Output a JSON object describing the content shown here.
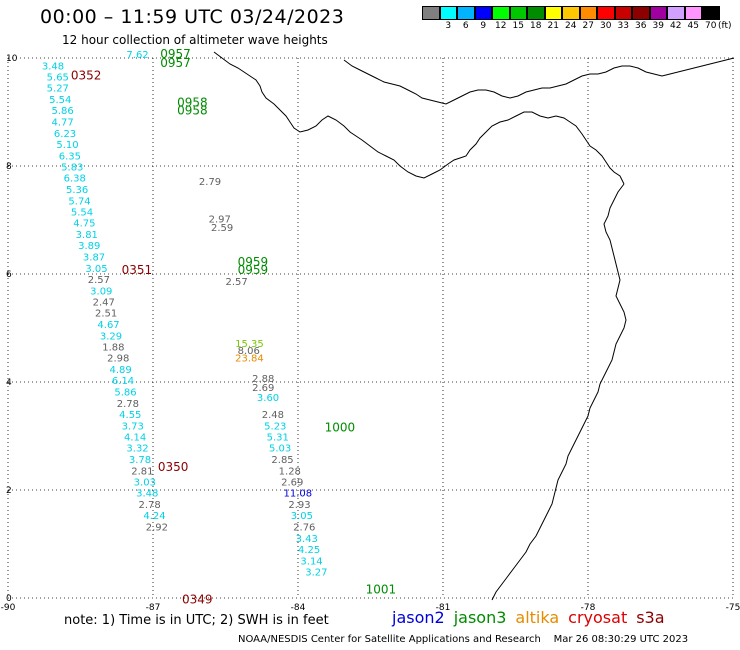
{
  "header": {
    "title": "00:00 – 11:59 UTC 03/24/2023",
    "subtitle": "12 hour collection of altimeter wave heights"
  },
  "colorbar": {
    "swatches": [
      "#808080",
      "#00ffff",
      "#00b4ff",
      "#0000ff",
      "#00ff00",
      "#00c800",
      "#008c00",
      "#ffff00",
      "#ffc800",
      "#ff8c00",
      "#ff0000",
      "#c80000",
      "#8c0000",
      "#a000a0",
      "#d2a0ff",
      "#ff96ff",
      "#000000"
    ],
    "labels": [
      "",
      "3",
      "6",
      "9",
      "12",
      "15",
      "18",
      "21",
      "24",
      "27",
      "30",
      "33",
      "36",
      "39",
      "42",
      "45",
      "70"
    ],
    "unit": "(ft)"
  },
  "map": {
    "lon_min": -90,
    "lon_max": -75,
    "lat_min": 0,
    "lat_max": 10,
    "x_ticks": [
      {
        "v": -90,
        "t": "-90"
      },
      {
        "v": -87,
        "t": "-87"
      },
      {
        "v": -84,
        "t": "-84"
      },
      {
        "v": -81,
        "t": "-81"
      },
      {
        "v": -78,
        "t": "-78"
      },
      {
        "v": -75,
        "t": "-75"
      }
    ],
    "y_ticks": [
      {
        "v": 0,
        "t": "0"
      },
      {
        "v": 2,
        "t": "2"
      },
      {
        "v": 4,
        "t": "4"
      },
      {
        "v": 6,
        "t": "6"
      },
      {
        "v": 8,
        "t": "8"
      },
      {
        "v": 10,
        "t": "10"
      }
    ],
    "colors": {
      "gray": "#606060",
      "cyan": "#00d2e6",
      "blue": "#0000dc",
      "green": "#008c00",
      "orange": "#e68c00",
      "darkred": "#8c0000",
      "yellowgreen": "#78c800"
    },
    "time_labels": [
      {
        "text": "0352",
        "lon": -88.7,
        "lat": 9.6,
        "color": "darkred"
      },
      {
        "text": "0351",
        "lon": -87.65,
        "lat": 6.0,
        "color": "darkred"
      },
      {
        "text": "0350",
        "lon": -86.9,
        "lat": 2.35,
        "color": "darkred"
      },
      {
        "text": "0349",
        "lon": -86.4,
        "lat": -0.1,
        "color": "darkred"
      },
      {
        "text": "0957",
        "lon": -86.85,
        "lat": 10.0,
        "color": "green"
      },
      {
        "text": "0957",
        "lon": -86.85,
        "lat": 9.83,
        "color": "green"
      },
      {
        "text": "0958",
        "lon": -86.5,
        "lat": 9.1,
        "color": "green"
      },
      {
        "text": "0958",
        "lon": -86.5,
        "lat": 8.95,
        "color": "green"
      },
      {
        "text": "0959",
        "lon": -85.25,
        "lat": 6.15,
        "color": "green"
      },
      {
        "text": "0959",
        "lon": -85.25,
        "lat": 6.0,
        "color": "green"
      },
      {
        "text": "1000",
        "lon": -83.45,
        "lat": 3.08,
        "color": "green"
      },
      {
        "text": "1001",
        "lon": -82.6,
        "lat": 0.08,
        "color": "green"
      }
    ],
    "left_track": [
      {
        "v": "3.48",
        "lon": -89.3,
        "lat": 9.79,
        "c": "cyan"
      },
      {
        "v": "5.65",
        "lon": -89.2,
        "lat": 9.58,
        "c": "cyan"
      },
      {
        "v": "5.27",
        "lon": -89.2,
        "lat": 9.38,
        "c": "cyan"
      },
      {
        "v": "5.54",
        "lon": -89.15,
        "lat": 9.17,
        "c": "cyan"
      },
      {
        "v": "5.86",
        "lon": -89.1,
        "lat": 8.96,
        "c": "cyan"
      },
      {
        "v": "4.77",
        "lon": -89.1,
        "lat": 8.75,
        "c": "cyan"
      },
      {
        "v": "6.23",
        "lon": -89.05,
        "lat": 8.54,
        "c": "cyan"
      },
      {
        "v": "5.10",
        "lon": -89.0,
        "lat": 8.33,
        "c": "cyan"
      },
      {
        "v": "6.35",
        "lon": -88.95,
        "lat": 8.12,
        "c": "cyan"
      },
      {
        "v": "5.83",
        "lon": -88.9,
        "lat": 7.92,
        "c": "cyan"
      },
      {
        "v": "6.38",
        "lon": -88.85,
        "lat": 7.71,
        "c": "cyan"
      },
      {
        "v": "5.36",
        "lon": -88.8,
        "lat": 7.5,
        "c": "cyan"
      },
      {
        "v": "5.74",
        "lon": -88.75,
        "lat": 7.29,
        "c": "cyan"
      },
      {
        "v": "5.54",
        "lon": -88.7,
        "lat": 7.08,
        "c": "cyan"
      },
      {
        "v": "4.75",
        "lon": -88.65,
        "lat": 6.88,
        "c": "cyan"
      },
      {
        "v": "3.81",
        "lon": -88.6,
        "lat": 6.67,
        "c": "cyan"
      },
      {
        "v": "3.89",
        "lon": -88.55,
        "lat": 6.46,
        "c": "cyan"
      },
      {
        "v": "3.87",
        "lon": -88.45,
        "lat": 6.25,
        "c": "cyan"
      },
      {
        "v": "3.05",
        "lon": -88.4,
        "lat": 6.04,
        "c": "cyan"
      },
      {
        "v": "2.57",
        "lon": -88.35,
        "lat": 5.83,
        "c": "gray"
      },
      {
        "v": "3.09",
        "lon": -88.3,
        "lat": 5.62,
        "c": "cyan"
      },
      {
        "v": "2.47",
        "lon": -88.25,
        "lat": 5.42,
        "c": "gray"
      },
      {
        "v": "2.51",
        "lon": -88.2,
        "lat": 5.21,
        "c": "gray"
      },
      {
        "v": "4.67",
        "lon": -88.15,
        "lat": 5.0,
        "c": "cyan"
      },
      {
        "v": "3.29",
        "lon": -88.1,
        "lat": 4.79,
        "c": "cyan"
      },
      {
        "v": "1.88",
        "lon": -88.05,
        "lat": 4.58,
        "c": "gray"
      },
      {
        "v": "2.98",
        "lon": -87.95,
        "lat": 4.38,
        "c": "gray"
      },
      {
        "v": "4.89",
        "lon": -87.9,
        "lat": 4.17,
        "c": "cyan"
      },
      {
        "v": "6.14",
        "lon": -87.85,
        "lat": 3.96,
        "c": "cyan"
      },
      {
        "v": "5.86",
        "lon": -87.8,
        "lat": 3.75,
        "c": "cyan"
      },
      {
        "v": "2.78",
        "lon": -87.75,
        "lat": 3.54,
        "c": "gray"
      },
      {
        "v": "4.55",
        "lon": -87.7,
        "lat": 3.33,
        "c": "cyan"
      },
      {
        "v": "3.73",
        "lon": -87.65,
        "lat": 3.12,
        "c": "cyan"
      },
      {
        "v": "4.14",
        "lon": -87.6,
        "lat": 2.92,
        "c": "cyan"
      },
      {
        "v": "3.32",
        "lon": -87.55,
        "lat": 2.71,
        "c": "cyan"
      },
      {
        "v": "3.78",
        "lon": -87.5,
        "lat": 2.5,
        "c": "cyan"
      },
      {
        "v": "2.81",
        "lon": -87.45,
        "lat": 2.29,
        "c": "gray"
      },
      {
        "v": "3.03",
        "lon": -87.4,
        "lat": 2.08,
        "c": "cyan"
      },
      {
        "v": "3.48",
        "lon": -87.35,
        "lat": 1.88,
        "c": "cyan"
      },
      {
        "v": "2.78",
        "lon": -87.3,
        "lat": 1.67,
        "c": "gray"
      },
      {
        "v": "4.24",
        "lon": -87.2,
        "lat": 1.46,
        "c": "cyan"
      },
      {
        "v": "2.92",
        "lon": -87.15,
        "lat": 1.25,
        "c": "gray"
      }
    ],
    "right_track": [
      {
        "v": "7.62",
        "lon": -87.55,
        "lat": 10.0,
        "c": "cyan"
      },
      {
        "v": "2.79",
        "lon": -86.05,
        "lat": 7.65,
        "c": "gray"
      },
      {
        "v": "2.97",
        "lon": -85.85,
        "lat": 6.95,
        "c": "gray"
      },
      {
        "v": "2.59",
        "lon": -85.8,
        "lat": 6.8,
        "c": "gray"
      },
      {
        "v": "2.57",
        "lon": -85.5,
        "lat": 5.8,
        "c": "gray"
      },
      {
        "v": "15.35",
        "lon": -85.3,
        "lat": 4.65,
        "c": "yellowgreen"
      },
      {
        "v": "8.06",
        "lon": -85.25,
        "lat": 4.52,
        "c": "gray"
      },
      {
        "v": "23.84",
        "lon": -85.3,
        "lat": 4.38,
        "c": "orange"
      },
      {
        "v": "2.88",
        "lon": -84.95,
        "lat": 4.0,
        "c": "gray"
      },
      {
        "v": "2.69",
        "lon": -84.95,
        "lat": 3.83,
        "c": "gray"
      },
      {
        "v": "3.60",
        "lon": -84.85,
        "lat": 3.65,
        "c": "cyan"
      },
      {
        "v": "2.48",
        "lon": -84.75,
        "lat": 3.33,
        "c": "gray"
      },
      {
        "v": "5.23",
        "lon": -84.7,
        "lat": 3.12,
        "c": "cyan"
      },
      {
        "v": "5.31",
        "lon": -84.65,
        "lat": 2.92,
        "c": "cyan"
      },
      {
        "v": "5.03",
        "lon": -84.6,
        "lat": 2.71,
        "c": "cyan"
      },
      {
        "v": "2.85",
        "lon": -84.55,
        "lat": 2.5,
        "c": "gray"
      },
      {
        "v": "1.28",
        "lon": -84.4,
        "lat": 2.29,
        "c": "gray"
      },
      {
        "v": "2.69",
        "lon": -84.35,
        "lat": 2.08,
        "c": "gray"
      },
      {
        "v": "11.08",
        "lon": -84.3,
        "lat": 1.88,
        "c": "blue"
      },
      {
        "v": "2.93",
        "lon": -84.2,
        "lat": 1.67,
        "c": "gray"
      },
      {
        "v": "3.05",
        "lon": -84.15,
        "lat": 1.46,
        "c": "cyan"
      },
      {
        "v": "2.76",
        "lon": -84.1,
        "lat": 1.25,
        "c": "gray"
      },
      {
        "v": "3.43",
        "lon": -84.05,
        "lat": 1.04,
        "c": "cyan"
      },
      {
        "v": "4.25",
        "lon": -84.0,
        "lat": 0.83,
        "c": "cyan"
      },
      {
        "v": "3.14",
        "lon": -83.95,
        "lat": 0.62,
        "c": "cyan"
      },
      {
        "v": "3.27",
        "lon": -83.85,
        "lat": 0.42,
        "c": "cyan"
      }
    ]
  },
  "footer": {
    "note": "note: 1) Time is in UTC; 2) SWH is in feet",
    "legend": [
      {
        "name": "jason2",
        "color": "#0000dc"
      },
      {
        "name": "jason3",
        "color": "#008c00"
      },
      {
        "name": "altika",
        "color": "#e68c00"
      },
      {
        "name": "cryosat",
        "color": "#dc0000"
      },
      {
        "name": "s3a",
        "color": "#8c0000"
      }
    ],
    "credit": "NOAA/NESDIS Center for Satellite Applications and Research    Mar 26 08:30:29 UTC 2023"
  }
}
